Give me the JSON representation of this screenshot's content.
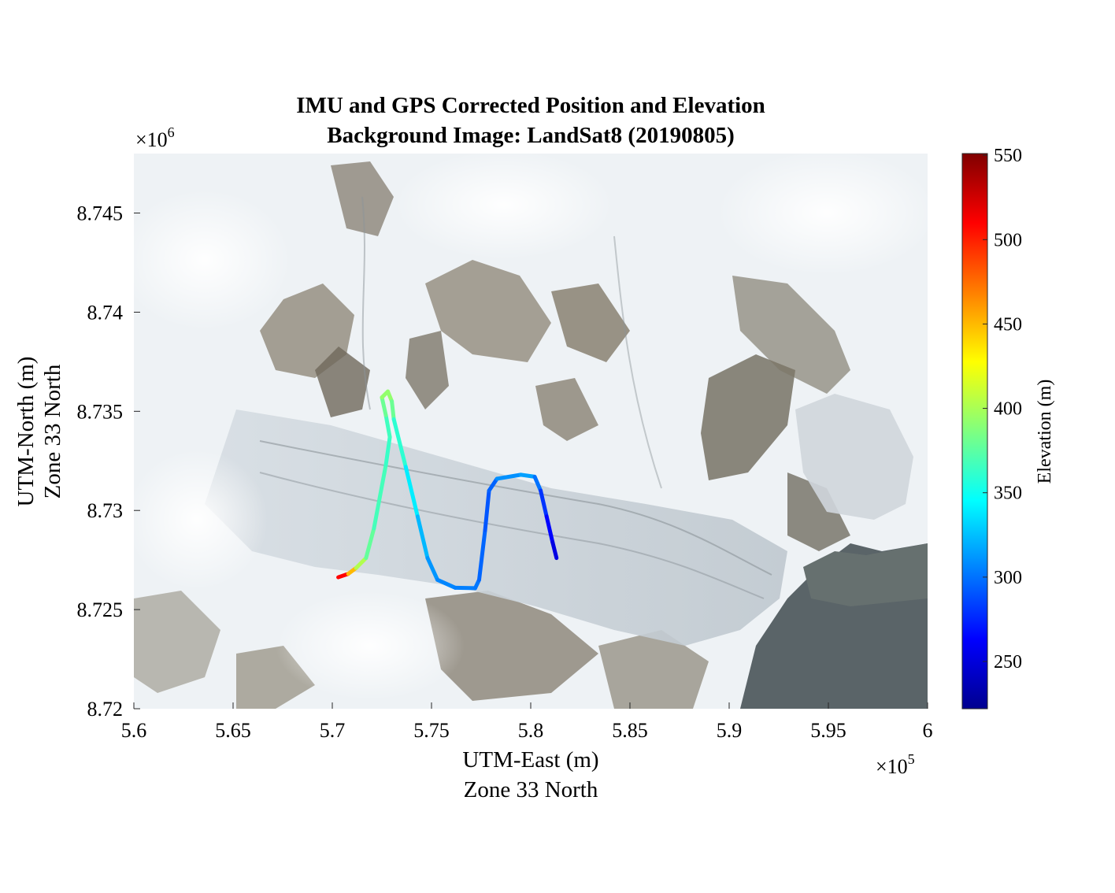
{
  "chart_data": {
    "type": "line",
    "title": [
      "IMU and GPS Corrected Position and Elevation",
      "Background Image: LandSat8 (20190805)"
    ],
    "xlabel": [
      "UTM-East (m)",
      "Zone 33 North"
    ],
    "ylabel": [
      "UTM-North (m)",
      "Zone 33 North"
    ],
    "x_exponent_label": "×10",
    "x_exponent": "5",
    "y_exponent_label": "×10",
    "y_exponent": "6",
    "xlim": [
      560000,
      600000
    ],
    "ylim": [
      8720000,
      8748000
    ],
    "xticks": [
      560000,
      565000,
      570000,
      575000,
      580000,
      585000,
      590000,
      595000,
      600000
    ],
    "xtick_labels": [
      "5.6",
      "5.65",
      "5.7",
      "5.75",
      "5.8",
      "5.85",
      "5.9",
      "5.95",
      "6"
    ],
    "yticks": [
      8720000,
      8725000,
      8730000,
      8735000,
      8740000,
      8745000
    ],
    "ytick_labels": [
      "8.72",
      "8.725",
      "8.73",
      "8.735",
      "8.74",
      "8.745"
    ],
    "grid": false,
    "background": "satellite image (glacier)",
    "colorbar": {
      "label": "Elevation (m)",
      "colormap": "jet",
      "limits": [
        222,
        551
      ],
      "ticks": [
        250,
        300,
        350,
        400,
        450,
        500,
        550
      ],
      "tick_labels": [
        "250",
        "300",
        "350",
        "400",
        "450",
        "500",
        "550"
      ]
    },
    "series": [
      {
        "points": [
          [
            570300,
            8726630,
            540
          ],
          [
            570800,
            8726800,
            480
          ],
          [
            571200,
            8727100,
            420
          ],
          [
            571700,
            8727600,
            385
          ],
          [
            572100,
            8729100,
            370
          ],
          [
            572700,
            8732300,
            365
          ],
          [
            572900,
            8733700,
            362
          ],
          [
            572700,
            8734800,
            370
          ],
          [
            572500,
            8735700,
            390
          ],
          [
            572800,
            8736000,
            395
          ],
          [
            573000,
            8735500,
            390
          ],
          [
            573100,
            8734600,
            370
          ],
          [
            573700,
            8732200,
            350
          ],
          [
            574300,
            8729700,
            330
          ],
          [
            574800,
            8727600,
            315
          ],
          [
            575300,
            8726500,
            308
          ],
          [
            576200,
            8726100,
            305
          ],
          [
            577200,
            8726080,
            303
          ],
          [
            577400,
            8726500,
            300
          ],
          [
            577700,
            8729000,
            292
          ],
          [
            577900,
            8731000,
            290
          ],
          [
            578300,
            8731600,
            300
          ],
          [
            579500,
            8731800,
            320
          ],
          [
            580200,
            8731700,
            310
          ],
          [
            580500,
            8731000,
            290
          ],
          [
            580800,
            8729700,
            270
          ],
          [
            581100,
            8728400,
            258
          ],
          [
            581300,
            8727600,
            250
          ]
        ]
      }
    ]
  }
}
